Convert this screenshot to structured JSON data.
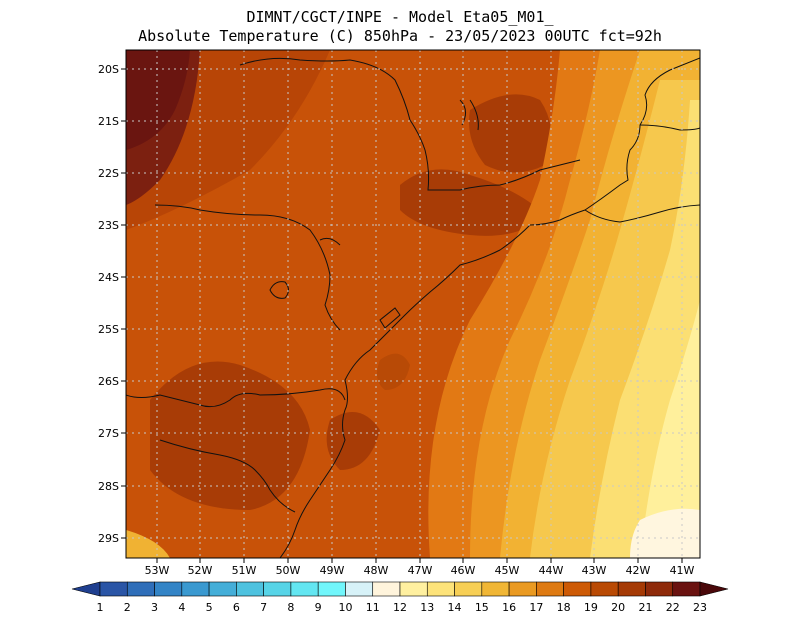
{
  "header": {
    "line1": "DIMNT/CGCT/INPE -  Model Eta05_M01_",
    "line2": "Absolute Temperature (C) 850hPa -  23/05/2023 00UTC fct=92h"
  },
  "map": {
    "lat_labels": [
      "20S",
      "21S",
      "22S",
      "23S",
      "24S",
      "25S",
      "26S",
      "27S",
      "28S",
      "29S"
    ],
    "lon_labels": [
      "53W",
      "52W",
      "51W",
      "50W",
      "49W",
      "48W",
      "47W",
      "46W",
      "45W",
      "44W",
      "43W",
      "42W",
      "41W"
    ]
  },
  "colorbar": {
    "labels": [
      "1",
      "2",
      "3",
      "4",
      "5",
      "6",
      "7",
      "8",
      "9",
      "10",
      "11",
      "12",
      "13",
      "14",
      "15",
      "16",
      "17",
      "18",
      "19",
      "20",
      "21",
      "22",
      "23"
    ],
    "colors": [
      "#1f3f8f",
      "#2a55a6",
      "#2f6eb9",
      "#3384c6",
      "#3a99d0",
      "#44aed8",
      "#4ec2df",
      "#57d4e7",
      "#63e6f1",
      "#71f6fb",
      "#d7f2f8",
      "#fff4dc",
      "#fff0a0",
      "#fde37a",
      "#f7cf55",
      "#f0b635",
      "#ea9a22",
      "#de7a12",
      "#cd5a05",
      "#b94a04",
      "#a53a05",
      "#8e2a0a",
      "#6a1210",
      "#4a080a"
    ]
  }
}
